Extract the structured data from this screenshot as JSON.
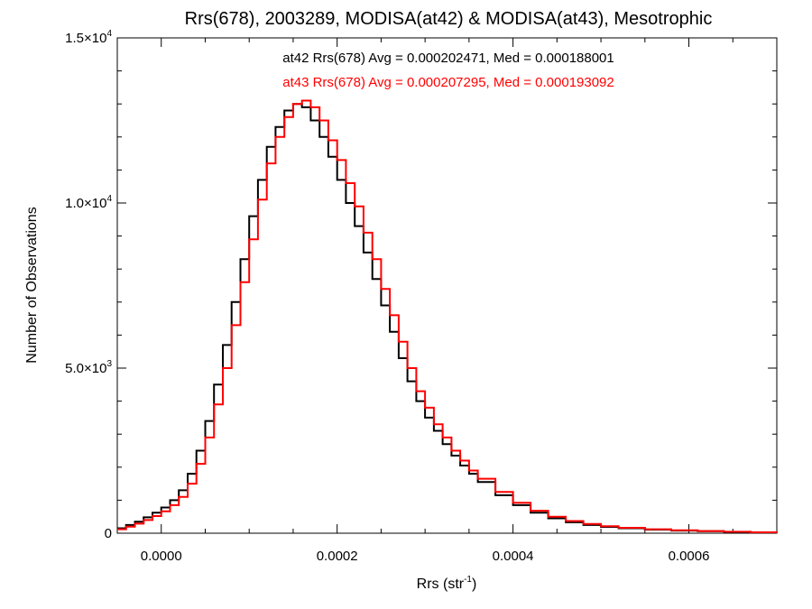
{
  "chart_data": {
    "type": "line",
    "title": "Rrs(678), 2003289, MODISA(at42) & MODISA(at43), Mesotrophic",
    "xlabel_main": "Rrs (str",
    "xlabel_sup": "-1",
    "xlabel_close": ")",
    "ylabel": "Number of Observations",
    "xlim": [
      -5e-05,
      0.0007
    ],
    "ylim": [
      0,
      15000
    ],
    "x_ticks": [
      {
        "value": 0.0,
        "label": "0.0000"
      },
      {
        "value": 0.0002,
        "label": "0.0002"
      },
      {
        "value": 0.0004,
        "label": "0.0004"
      },
      {
        "value": 0.0006,
        "label": "0.0006"
      }
    ],
    "y_ticks": [
      {
        "value": 0,
        "mant": "0",
        "exp": ""
      },
      {
        "value": 5000,
        "mant": "5.0×10",
        "exp": "3"
      },
      {
        "value": 10000,
        "mant": "1.0×10",
        "exp": "4"
      },
      {
        "value": 15000,
        "mant": "1.5×10",
        "exp": "4"
      }
    ],
    "annotations": [
      {
        "text": "at42 Rrs(678) Avg = 0.000202471, Med = 0.000188001",
        "color": "#000000"
      },
      {
        "text": "at43 Rrs(678) Avg = 0.000207295, Med = 0.000193092",
        "color": "#ff0000"
      }
    ],
    "series": [
      {
        "name": "at42",
        "color": "#000000",
        "x": [
          -5e-05,
          -4e-05,
          -3e-05,
          -2e-05,
          -1e-05,
          0.0,
          1e-05,
          2e-05,
          3e-05,
          4e-05,
          5e-05,
          6e-05,
          7e-05,
          8e-05,
          9e-05,
          0.0001,
          0.00011,
          0.00012,
          0.00013,
          0.00014,
          0.00015,
          0.00016,
          0.00017,
          0.00018,
          0.00019,
          0.0002,
          0.00021,
          0.00022,
          0.00023,
          0.00024,
          0.00025,
          0.00026,
          0.00027,
          0.00028,
          0.00029,
          0.0003,
          0.00031,
          0.00032,
          0.00033,
          0.00034,
          0.00035,
          0.00036,
          0.00038,
          0.0004,
          0.00042,
          0.00044,
          0.00046,
          0.00048,
          0.0005,
          0.00052,
          0.00055,
          0.00058,
          0.00061,
          0.00064,
          0.00067,
          0.0007
        ],
        "y": [
          150,
          250,
          350,
          480,
          620,
          780,
          1000,
          1300,
          1800,
          2500,
          3400,
          4500,
          5700,
          7000,
          8300,
          9600,
          10700,
          11700,
          12300,
          12800,
          13000,
          12900,
          12500,
          12000,
          11400,
          10700,
          10000,
          9300,
          8500,
          7700,
          6900,
          6100,
          5300,
          4600,
          4000,
          3500,
          3100,
          2700,
          2350,
          2050,
          1800,
          1550,
          1150,
          850,
          620,
          450,
          330,
          250,
          190,
          150,
          110,
          80,
          60,
          40,
          25,
          15
        ]
      },
      {
        "name": "at43",
        "color": "#ff0000",
        "x": [
          -5e-05,
          -4e-05,
          -3e-05,
          -2e-05,
          -1e-05,
          0.0,
          1e-05,
          2e-05,
          3e-05,
          4e-05,
          5e-05,
          6e-05,
          7e-05,
          8e-05,
          9e-05,
          0.0001,
          0.00011,
          0.00012,
          0.00013,
          0.00014,
          0.00015,
          0.00016,
          0.00017,
          0.00018,
          0.00019,
          0.0002,
          0.00021,
          0.00022,
          0.00023,
          0.00024,
          0.00025,
          0.00026,
          0.00027,
          0.00028,
          0.00029,
          0.0003,
          0.00031,
          0.00032,
          0.00033,
          0.00034,
          0.00035,
          0.00036,
          0.00038,
          0.0004,
          0.00042,
          0.00044,
          0.00046,
          0.00048,
          0.0005,
          0.00052,
          0.00055,
          0.00058,
          0.00061,
          0.00064,
          0.00067,
          0.0007
        ],
        "y": [
          120,
          200,
          290,
          400,
          520,
          660,
          850,
          1100,
          1500,
          2100,
          2900,
          3900,
          5000,
          6300,
          7600,
          8900,
          10100,
          11200,
          12000,
          12600,
          13000,
          13100,
          12900,
          12500,
          11900,
          11300,
          10600,
          9900,
          9100,
          8300,
          7400,
          6600,
          5800,
          5000,
          4300,
          3800,
          3300,
          2900,
          2500,
          2200,
          1900,
          1650,
          1250,
          920,
          680,
          500,
          370,
          280,
          210,
          165,
          120,
          90,
          65,
          45,
          28,
          18
        ]
      }
    ]
  }
}
